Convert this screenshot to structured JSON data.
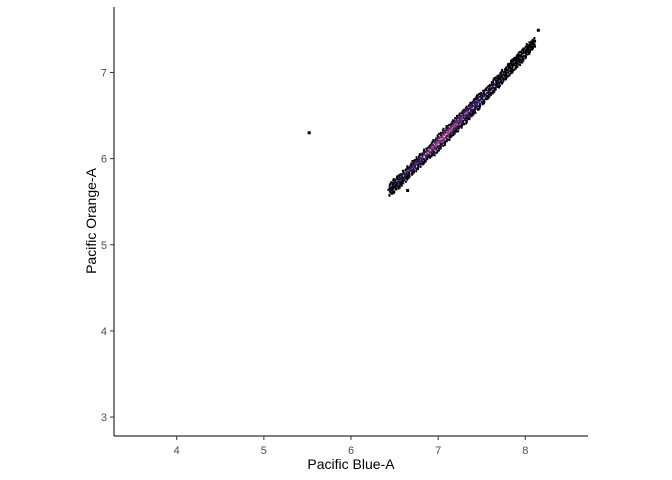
{
  "chart_data": {
    "type": "heatmap",
    "title": "",
    "xlabel": "Pacific Blue-A",
    "ylabel": "Pacific Orange-A",
    "xlim": [
      3.28,
      8.72
    ],
    "ylim": [
      2.78,
      7.76
    ],
    "x_ticks": [
      4,
      5,
      6,
      7,
      8
    ],
    "y_ticks": [
      3,
      4,
      5,
      6,
      7
    ],
    "grid": false,
    "legend": "none",
    "colors": {
      "axis": "#000000",
      "tick_text": "#4d4d4d",
      "bin_low": "#000000",
      "bin_mid": "#3b1f6e",
      "bin_high": "#d6456d"
    },
    "outliers": [
      {
        "x": 5.52,
        "y": 6.3
      },
      {
        "x": 6.65,
        "y": 5.63
      },
      {
        "x": 8.15,
        "y": 7.49
      }
    ],
    "density_ridge": {
      "x_start": 6.44,
      "x_end": 8.1,
      "y_at_start": 5.65,
      "y_at_end": 7.37,
      "peak_x": 7.05
    }
  }
}
